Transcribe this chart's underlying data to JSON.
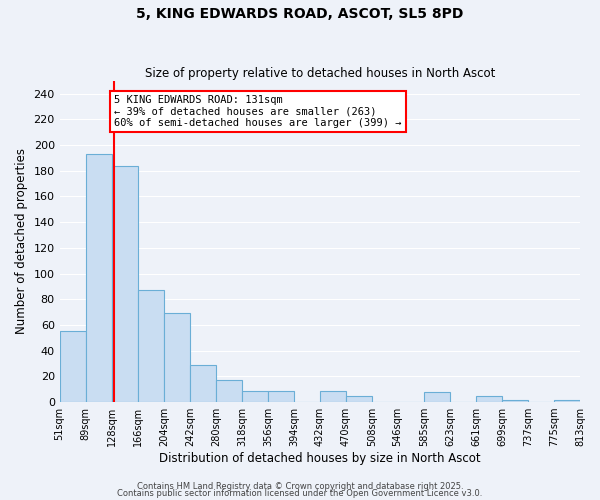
{
  "title": "5, KING EDWARDS ROAD, ASCOT, SL5 8PD",
  "subtitle": "Size of property relative to detached houses in North Ascot",
  "xlabel": "Distribution of detached houses by size in North Ascot",
  "ylabel": "Number of detached properties",
  "bar_edges": [
    51,
    89,
    128,
    166,
    204,
    242,
    280,
    318,
    356,
    394,
    432,
    470,
    508,
    546,
    585,
    623,
    661,
    699,
    737,
    775,
    813
  ],
  "bar_heights": [
    55,
    193,
    184,
    87,
    69,
    29,
    17,
    9,
    9,
    0,
    9,
    5,
    0,
    0,
    8,
    0,
    5,
    2,
    0,
    2
  ],
  "bar_color": "#c9ddf2",
  "bar_edge_color": "#6aaed6",
  "red_line_x": 131,
  "annotation_title": "5 KING EDWARDS ROAD: 131sqm",
  "annotation_line1": "← 39% of detached houses are smaller (263)",
  "annotation_line2": "60% of semi-detached houses are larger (399) →",
  "ylim": [
    0,
    250
  ],
  "yticks": [
    0,
    20,
    40,
    60,
    80,
    100,
    120,
    140,
    160,
    180,
    200,
    220,
    240
  ],
  "bg_color": "#eef2f9",
  "grid_color": "#ffffff",
  "footer1": "Contains HM Land Registry data © Crown copyright and database right 2025.",
  "footer2": "Contains public sector information licensed under the Open Government Licence v3.0."
}
